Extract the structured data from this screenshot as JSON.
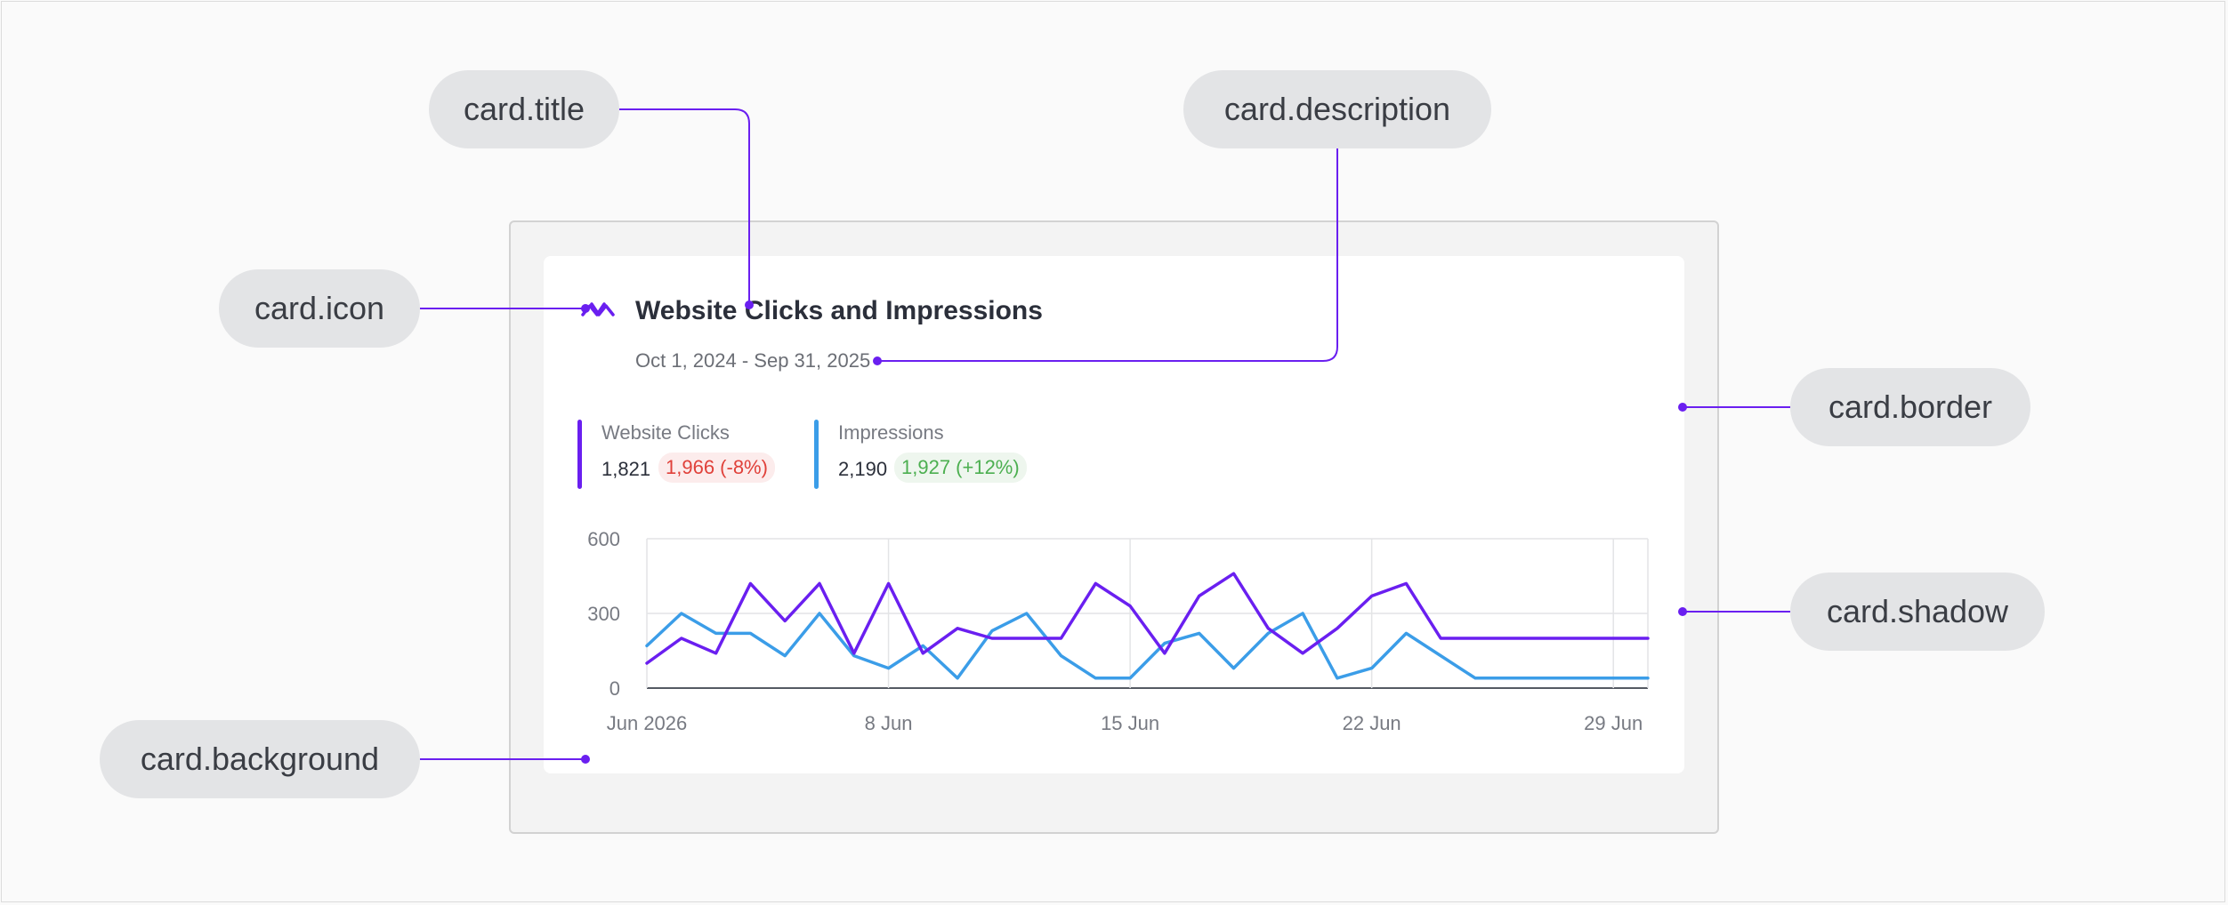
{
  "card": {
    "title": "Website Clicks and Impressions",
    "description": "Oct 1, 2024 - Sep 31, 2025",
    "icon": "line-chart-icon"
  },
  "legend": [
    {
      "name": "Website Clicks",
      "value": "1,821",
      "comparison": "1,966 (-8%)",
      "trend": "negative",
      "color": "#6a1ff0"
    },
    {
      "name": "Impressions",
      "value": "2,190",
      "comparison": "1,927 (+12%)",
      "trend": "positive",
      "color": "#3b9de8"
    }
  ],
  "annotations": {
    "title_tag": "card.title",
    "description_tag": "card.description",
    "icon_tag": "card.icon",
    "border_tag": "card.border",
    "shadow_tag": "card.shadow",
    "background_tag": "card.background"
  },
  "colors": {
    "accent": "#6a1ff0",
    "connector": "#6a1ff0",
    "series_clicks": "#6a1ff0",
    "series_impressions": "#3b9de8",
    "negative": "#e0413a",
    "positive": "#4caf50"
  },
  "chart_data": {
    "type": "line",
    "x": [
      "Jun 1",
      "Jun 2",
      "Jun 3",
      "Jun 4",
      "Jun 5",
      "Jun 6",
      "Jun 7",
      "Jun 8",
      "Jun 9",
      "Jun 10",
      "Jun 11",
      "Jun 12",
      "Jun 13",
      "Jun 14",
      "Jun 15",
      "Jun 16",
      "Jun 17",
      "Jun 18",
      "Jun 19",
      "Jun 20",
      "Jun 21",
      "Jun 22",
      "Jun 23",
      "Jun 24",
      "Jun 25",
      "Jun 26",
      "Jun 27",
      "Jun 28",
      "Jun 29",
      "Jun 30"
    ],
    "x_tick_labels": [
      "Jun 2026",
      "8 Jun",
      "15 Jun",
      "22 Jun",
      "29 Jun"
    ],
    "x_tick_dates": [
      "Jun 1",
      "Jun 8",
      "Jun 15",
      "Jun 22",
      "Jun 29"
    ],
    "series": [
      {
        "name": "Website Clicks",
        "color": "#6a1ff0",
        "values": [
          100,
          200,
          140,
          420,
          270,
          420,
          140,
          420,
          140,
          240,
          200,
          200,
          200,
          420,
          330,
          140,
          370,
          460,
          240,
          140,
          240,
          370,
          420,
          200,
          200,
          200,
          200,
          200,
          200,
          200
        ]
      },
      {
        "name": "Impressions",
        "color": "#3b9de8",
        "values": [
          170,
          300,
          220,
          220,
          130,
          300,
          130,
          80,
          170,
          40,
          230,
          300,
          130,
          40,
          40,
          180,
          220,
          80,
          220,
          300,
          40,
          80,
          220,
          130,
          40,
          40,
          40,
          40,
          40,
          40
        ]
      }
    ],
    "ylim": [
      0,
      600
    ],
    "y_ticks": [
      0,
      300,
      600
    ],
    "grid": true
  }
}
